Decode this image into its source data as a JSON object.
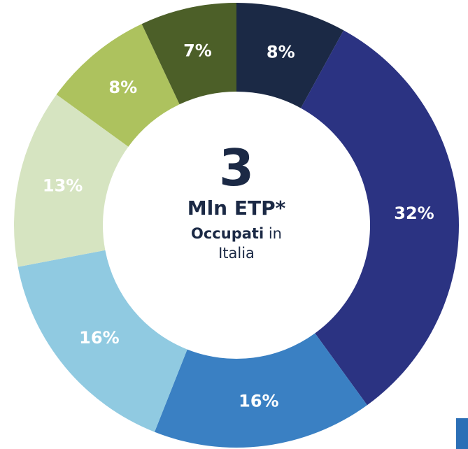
{
  "chart_data": {
    "type": "donut",
    "values": [
      8,
      32,
      16,
      16,
      13,
      8,
      7
    ],
    "value_labels": [
      "8%",
      "32%",
      "16%",
      "16%",
      "13%",
      "8%",
      "7%"
    ],
    "colors": [
      "#1b2945",
      "#2b3382",
      "#3a80c3",
      "#90cae1",
      "#d6e4c1",
      "#adc25e",
      "#4c5f28"
    ],
    "center_value": 3,
    "center_unit": "Mln ETP*",
    "center_note_bold": "Occupati",
    "center_note": "in Italia"
  }
}
